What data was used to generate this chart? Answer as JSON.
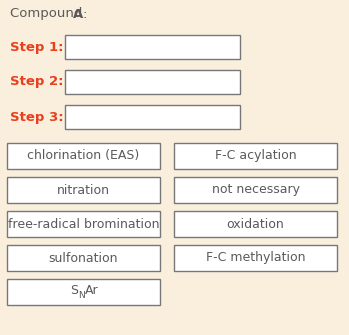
{
  "background_color": "#faeedd",
  "title_text1": "Compound ",
  "title_text2": "A",
  "title_text3": ":",
  "title_color": "#5a5a5a",
  "step_labels": [
    "Step 1:",
    "Step 2:",
    "Step 3:"
  ],
  "step_color": "#e8401c",
  "option_rows": [
    [
      "chlorination (EAS)",
      "F-C acylation"
    ],
    [
      "nitration",
      "not necessary"
    ],
    [
      "free-radical bromination",
      "oxidation"
    ],
    [
      "sulfonation",
      "F-C methylation"
    ]
  ],
  "snar_text": [
    "S",
    "N",
    "Ar"
  ],
  "box_edge_color": "#777777",
  "text_color": "#5a5a5a",
  "font_size_title": 9.5,
  "font_size_steps": 9.5,
  "font_size_options": 9.0,
  "fig_width": 3.49,
  "fig_height": 3.35,
  "dpi": 100
}
